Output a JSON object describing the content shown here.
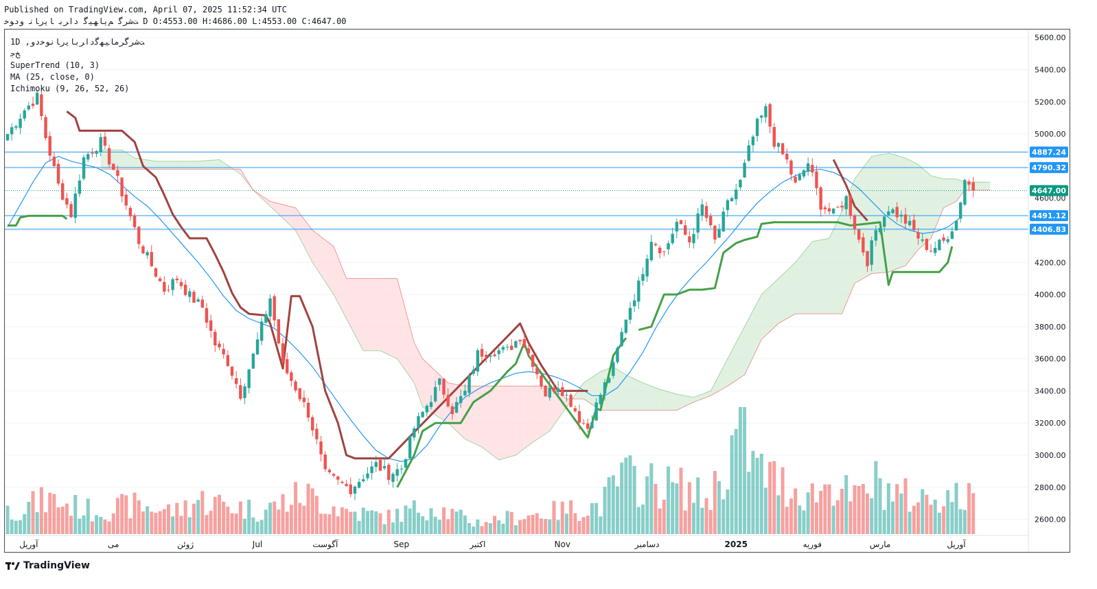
{
  "header": {
    "published_line": "Published on TradingView.com, April 07, 2025 11:52:34 UTC",
    "symbol_line": "ﺖﺷﺮﮔ ﻢﯾﺎﻬﯿﮔ ﺩﺍﺮﺑ ﺎﯾﺭﺎﻧ ﻭﺩﻮﺧ D O:4553.00 H:4686.00 L:4553.00 C:4647.00"
  },
  "legend": {
    "symbol_name": "1D  ,ﺖﺷﺮﮔﺮﻣﺎﯿﻬﮔﺩﺍﺮﺑﺎﯾﺭﺎﻧﻮﺧﺩﻭ",
    "exchange": "ﺦﺟ",
    "indicators": [
      "SuperTrend (10, 3)",
      "MA (25, close, 0)",
      "Ichimoku (9, 26, 52, 26)"
    ]
  },
  "footer": {
    "brand": "TradingView"
  },
  "colors": {
    "up": "#26a69a",
    "down": "#ef5350",
    "st_up": "#43a047",
    "st_down": "#a0423e",
    "ma": "#2196f3",
    "hline": "#2196f3",
    "cloud_bull": "#c8e6c9",
    "cloud_bear": "#ffcdd2",
    "last_price": "#089981"
  },
  "chart_data": {
    "type": "candlestick",
    "timeframe": "1D",
    "ylim": [
      2500,
      5650
    ],
    "y_ticks": [
      2600,
      2800,
      3000,
      3200,
      3400,
      3600,
      3800,
      4000,
      4200,
      4400,
      4600,
      4800,
      5000,
      5200,
      5400,
      5600
    ],
    "y_tick_labels": [
      "2600.00",
      "2800.00",
      "3000.00",
      "3200.00",
      "3400.00",
      "3600.00",
      "3800.00",
      "4000.00",
      "4200.00",
      "4400.00",
      "4600.00",
      "4800.00",
      "5000.00",
      "5200.00",
      "5400.00",
      "5600.00"
    ],
    "x_labels": [
      {
        "label": "آوریل",
        "bar": 5
      },
      {
        "label": "می",
        "bar": 25
      },
      {
        "label": "ژوئن",
        "bar": 42
      },
      {
        "label": "Jul",
        "bar": 59
      },
      {
        "label": "آگوست",
        "bar": 75
      },
      {
        "label": "Sep",
        "bar": 93
      },
      {
        "label": "اکتبر",
        "bar": 111
      },
      {
        "label": "Nov",
        "bar": 131
      },
      {
        "label": "دسامبر",
        "bar": 151
      },
      {
        "label": "2025",
        "bar": 172,
        "bold": true
      },
      {
        "label": "فوریه",
        "bar": 190
      },
      {
        "label": "مارس",
        "bar": 206
      },
      {
        "label": "آوریل",
        "bar": 224
      }
    ],
    "horizontal_lines": [
      4887.24,
      4790.32,
      4491.12,
      4406.83
    ],
    "price_labels": [
      {
        "value": 4887.24,
        "text": "4887.24",
        "kind": "hline"
      },
      {
        "value": 4790.32,
        "text": "4790.32",
        "kind": "hline"
      },
      {
        "value": 4647.0,
        "text": "4647.00",
        "kind": "last"
      },
      {
        "value": 4491.12,
        "text": "4491.12",
        "kind": "hline"
      },
      {
        "value": 4406.83,
        "text": "4406.83",
        "kind": "hline"
      }
    ],
    "last_price": 4647.0,
    "close_anchors": [
      [
        0,
        5000
      ],
      [
        4,
        5150
      ],
      [
        7,
        5230
      ],
      [
        9,
        4980
      ],
      [
        12,
        4680
      ],
      [
        15,
        4500
      ],
      [
        18,
        4850
      ],
      [
        22,
        4950
      ],
      [
        25,
        4780
      ],
      [
        28,
        4560
      ],
      [
        31,
        4330
      ],
      [
        34,
        4180
      ],
      [
        37,
        4030
      ],
      [
        40,
        4100
      ],
      [
        43,
        3990
      ],
      [
        46,
        3920
      ],
      [
        49,
        3690
      ],
      [
        52,
        3580
      ],
      [
        55,
        3380
      ],
      [
        58,
        3620
      ],
      [
        62,
        3980
      ],
      [
        65,
        3560
      ],
      [
        68,
        3420
      ],
      [
        71,
        3260
      ],
      [
        73,
        3080
      ],
      [
        75,
        2880
      ],
      [
        78,
        2830
      ],
      [
        81,
        2790
      ],
      [
        84,
        2870
      ],
      [
        87,
        2940
      ],
      [
        90,
        2880
      ],
      [
        93,
        2920
      ],
      [
        96,
        3170
      ],
      [
        99,
        3310
      ],
      [
        102,
        3450
      ],
      [
        105,
        3280
      ],
      [
        108,
        3390
      ],
      [
        111,
        3630
      ],
      [
        114,
        3650
      ],
      [
        118,
        3650
      ],
      [
        121,
        3740
      ],
      [
        124,
        3580
      ],
      [
        127,
        3380
      ],
      [
        130,
        3440
      ],
      [
        133,
        3330
      ],
      [
        135,
        3230
      ],
      [
        137,
        3170
      ],
      [
        140,
        3380
      ],
      [
        143,
        3550
      ],
      [
        146,
        3860
      ],
      [
        149,
        4060
      ],
      [
        152,
        4350
      ],
      [
        155,
        4260
      ],
      [
        158,
        4450
      ],
      [
        161,
        4330
      ],
      [
        164,
        4550
      ],
      [
        167,
        4330
      ],
      [
        170,
        4560
      ],
      [
        173,
        4700
      ],
      [
        175,
        4900
      ],
      [
        177,
        5060
      ],
      [
        179,
        5150
      ],
      [
        181,
        4950
      ],
      [
        184,
        4830
      ],
      [
        186,
        4680
      ],
      [
        189,
        4820
      ],
      [
        192,
        4560
      ],
      [
        195,
        4500
      ],
      [
        198,
        4600
      ],
      [
        201,
        4340
      ],
      [
        203,
        4210
      ],
      [
        205,
        4400
      ],
      [
        208,
        4540
      ],
      [
        211,
        4480
      ],
      [
        213,
        4430
      ],
      [
        216,
        4320
      ],
      [
        218,
        4280
      ],
      [
        221,
        4330
      ],
      [
        224,
        4460
      ],
      [
        226,
        4720
      ],
      [
        228,
        4647
      ]
    ],
    "volume_anchors": [
      [
        0,
        0.2
      ],
      [
        10,
        0.3
      ],
      [
        20,
        0.2
      ],
      [
        30,
        0.25
      ],
      [
        40,
        0.2
      ],
      [
        45,
        0.3
      ],
      [
        60,
        0.2
      ],
      [
        70,
        0.35
      ],
      [
        80,
        0.2
      ],
      [
        90,
        0.15
      ],
      [
        100,
        0.25
      ],
      [
        110,
        0.1
      ],
      [
        120,
        0.15
      ],
      [
        130,
        0.2
      ],
      [
        140,
        0.25
      ],
      [
        145,
        0.5
      ],
      [
        150,
        0.45
      ],
      [
        160,
        0.4
      ],
      [
        165,
        0.3
      ],
      [
        170,
        0.6
      ],
      [
        173,
        1.0
      ],
      [
        176,
        0.6
      ],
      [
        180,
        0.5
      ],
      [
        185,
        0.4
      ],
      [
        190,
        0.35
      ],
      [
        195,
        0.45
      ],
      [
        200,
        0.3
      ],
      [
        205,
        0.45
      ],
      [
        210,
        0.35
      ],
      [
        215,
        0.3
      ],
      [
        220,
        0.35
      ],
      [
        228,
        0.3
      ]
    ],
    "supertrend_up": [
      [
        0,
        4430
      ],
      [
        2,
        4430
      ],
      [
        3,
        4480
      ],
      [
        5,
        4490
      ],
      [
        13,
        4490
      ],
      [
        14,
        4470
      ],
      [
        92,
        2800
      ],
      [
        94,
        2900
      ],
      [
        96,
        3000
      ],
      [
        98,
        3150
      ],
      [
        101,
        3200
      ],
      [
        107,
        3200
      ],
      [
        110,
        3330
      ],
      [
        114,
        3400
      ],
      [
        118,
        3520
      ],
      [
        120,
        3570
      ],
      [
        122,
        3700
      ],
      [
        123,
        3620
      ],
      [
        137,
        3110
      ],
      [
        139,
        3290
      ],
      [
        140,
        3280
      ],
      [
        143,
        3620
      ],
      [
        146,
        3730
      ],
      [
        149,
        3780
      ],
      [
        152,
        3800
      ],
      [
        155,
        4000
      ],
      [
        158,
        4000
      ],
      [
        161,
        4030
      ],
      [
        164,
        4030
      ],
      [
        167,
        4040
      ],
      [
        169,
        4260
      ],
      [
        172,
        4320
      ],
      [
        174,
        4340
      ],
      [
        177,
        4360
      ],
      [
        178,
        4440
      ],
      [
        181,
        4450
      ],
      [
        196,
        4450
      ],
      [
        199,
        4430
      ],
      [
        206,
        4450
      ],
      [
        208,
        4060
      ],
      [
        209,
        4140
      ],
      [
        220,
        4140
      ],
      [
        222,
        4200
      ],
      [
        223,
        4300
      ],
      [
        225,
        4300
      ]
    ],
    "supertrend_down": [
      [
        14,
        5140
      ],
      [
        16,
        5100
      ],
      [
        17,
        5020
      ],
      [
        27,
        5020
      ],
      [
        30,
        4950
      ],
      [
        32,
        4800
      ],
      [
        35,
        4730
      ],
      [
        37,
        4620
      ],
      [
        39,
        4500
      ],
      [
        41,
        4420
      ],
      [
        43,
        4350
      ],
      [
        47,
        4350
      ],
      [
        49,
        4250
      ],
      [
        51,
        4140
      ],
      [
        53,
        4010
      ],
      [
        55,
        3920
      ],
      [
        57,
        3880
      ],
      [
        61,
        3870
      ],
      [
        62,
        3820
      ],
      [
        65,
        3540
      ],
      [
        67,
        3990
      ],
      [
        69,
        3990
      ],
      [
        72,
        3800
      ],
      [
        75,
        3400
      ],
      [
        78,
        3200
      ],
      [
        80,
        3000
      ],
      [
        82,
        2980
      ],
      [
        90,
        2980
      ],
      [
        121,
        3820
      ],
      [
        123,
        3700
      ],
      [
        126,
        3560
      ],
      [
        130,
        3400
      ],
      [
        137,
        3400
      ],
      [
        195,
        4840
      ],
      [
        198,
        4680
      ],
      [
        200,
        4550
      ],
      [
        203,
        4460
      ],
      [
        206,
        4450
      ]
    ],
    "ma25": [
      [
        0,
        4420
      ],
      [
        3,
        4560
      ],
      [
        6,
        4700
      ],
      [
        9,
        4820
      ],
      [
        12,
        4860
      ],
      [
        15,
        4830
      ],
      [
        18,
        4810
      ],
      [
        21,
        4790
      ],
      [
        24,
        4750
      ],
      [
        27,
        4680
      ],
      [
        30,
        4610
      ],
      [
        33,
        4550
      ],
      [
        36,
        4470
      ],
      [
        39,
        4380
      ],
      [
        42,
        4290
      ],
      [
        45,
        4200
      ],
      [
        48,
        4100
      ],
      [
        51,
        3990
      ],
      [
        54,
        3900
      ],
      [
        57,
        3850
      ],
      [
        60,
        3820
      ],
      [
        63,
        3790
      ],
      [
        66,
        3720
      ],
      [
        69,
        3640
      ],
      [
        72,
        3550
      ],
      [
        75,
        3440
      ],
      [
        78,
        3330
      ],
      [
        81,
        3220
      ],
      [
        84,
        3120
      ],
      [
        87,
        3030
      ],
      [
        90,
        2980
      ],
      [
        93,
        2960
      ],
      [
        96,
        2980
      ],
      [
        99,
        3060
      ],
      [
        102,
        3180
      ],
      [
        105,
        3280
      ],
      [
        108,
        3360
      ],
      [
        111,
        3410
      ],
      [
        114,
        3450
      ],
      [
        117,
        3480
      ],
      [
        120,
        3510
      ],
      [
        123,
        3520
      ],
      [
        126,
        3510
      ],
      [
        129,
        3490
      ],
      [
        132,
        3460
      ],
      [
        135,
        3420
      ],
      [
        138,
        3370
      ],
      [
        141,
        3370
      ],
      [
        144,
        3420
      ],
      [
        147,
        3520
      ],
      [
        150,
        3640
      ],
      [
        153,
        3790
      ],
      [
        156,
        3920
      ],
      [
        159,
        4030
      ],
      [
        162,
        4120
      ],
      [
        165,
        4200
      ],
      [
        168,
        4290
      ],
      [
        171,
        4380
      ],
      [
        174,
        4480
      ],
      [
        177,
        4570
      ],
      [
        180,
        4640
      ],
      [
        183,
        4700
      ],
      [
        186,
        4740
      ],
      [
        189,
        4770
      ],
      [
        192,
        4780
      ],
      [
        195,
        4760
      ],
      [
        198,
        4720
      ],
      [
        201,
        4660
      ],
      [
        204,
        4580
      ],
      [
        207,
        4500
      ],
      [
        210,
        4440
      ],
      [
        213,
        4400
      ],
      [
        216,
        4380
      ],
      [
        219,
        4390
      ],
      [
        222,
        4420
      ],
      [
        225,
        4480
      ]
    ],
    "cloud_span_a": [
      [
        22,
        4900
      ],
      [
        27,
        4900
      ],
      [
        30,
        4850
      ],
      [
        35,
        4830
      ],
      [
        40,
        4830
      ],
      [
        45,
        4830
      ],
      [
        50,
        4840
      ],
      [
        55,
        4750
      ],
      [
        58,
        4650
      ],
      [
        62,
        4550
      ],
      [
        68,
        4400
      ],
      [
        72,
        4200
      ],
      [
        77,
        4000
      ],
      [
        80,
        3850
      ],
      [
        84,
        3650
      ],
      [
        88,
        3650
      ],
      [
        92,
        3600
      ],
      [
        96,
        3450
      ],
      [
        98,
        3300
      ],
      [
        104,
        3200
      ],
      [
        108,
        3100
      ],
      [
        112,
        3050
      ],
      [
        116,
        2970
      ],
      [
        120,
        3000
      ],
      [
        124,
        3080
      ],
      [
        128,
        3150
      ],
      [
        132,
        3300
      ],
      [
        136,
        3450
      ],
      [
        140,
        3520
      ],
      [
        143,
        3550
      ],
      [
        146,
        3500
      ],
      [
        150,
        3450
      ],
      [
        154,
        3410
      ],
      [
        158,
        3380
      ],
      [
        162,
        3360
      ],
      [
        166,
        3400
      ],
      [
        170,
        3600
      ],
      [
        174,
        3800
      ],
      [
        178,
        4000
      ],
      [
        182,
        4100
      ],
      [
        186,
        4200
      ],
      [
        190,
        4330
      ],
      [
        194,
        4350
      ],
      [
        197,
        4520
      ],
      [
        200,
        4720
      ],
      [
        204,
        4860
      ],
      [
        208,
        4880
      ],
      [
        212,
        4850
      ],
      [
        215,
        4810
      ],
      [
        218,
        4740
      ],
      [
        221,
        4720
      ],
      [
        224,
        4720
      ],
      [
        226,
        4700
      ],
      [
        232,
        4700
      ]
    ],
    "cloud_span_b": [
      [
        22,
        4780
      ],
      [
        27,
        4780
      ],
      [
        30,
        4780
      ],
      [
        35,
        4780
      ],
      [
        40,
        4780
      ],
      [
        45,
        4780
      ],
      [
        50,
        4780
      ],
      [
        55,
        4780
      ],
      [
        58,
        4650
      ],
      [
        62,
        4580
      ],
      [
        68,
        4540
      ],
      [
        72,
        4400
      ],
      [
        77,
        4300
      ],
      [
        80,
        4100
      ],
      [
        84,
        4100
      ],
      [
        88,
        4100
      ],
      [
        92,
        4100
      ],
      [
        96,
        3700
      ],
      [
        98,
        3600
      ],
      [
        104,
        3450
      ],
      [
        108,
        3430
      ],
      [
        112,
        3430
      ],
      [
        116,
        3430
      ],
      [
        120,
        3430
      ],
      [
        124,
        3430
      ],
      [
        128,
        3430
      ],
      [
        132,
        3350
      ],
      [
        136,
        3350
      ],
      [
        140,
        3280
      ],
      [
        143,
        3280
      ],
      [
        146,
        3280
      ],
      [
        150,
        3280
      ],
      [
        154,
        3280
      ],
      [
        158,
        3280
      ],
      [
        162,
        3330
      ],
      [
        166,
        3370
      ],
      [
        170,
        3430
      ],
      [
        174,
        3500
      ],
      [
        178,
        3720
      ],
      [
        182,
        3820
      ],
      [
        186,
        3880
      ],
      [
        190,
        3880
      ],
      [
        194,
        3880
      ],
      [
        197,
        3880
      ],
      [
        200,
        4070
      ],
      [
        204,
        4130
      ],
      [
        208,
        4140
      ],
      [
        212,
        4180
      ],
      [
        215,
        4280
      ],
      [
        218,
        4350
      ],
      [
        221,
        4540
      ],
      [
        224,
        4580
      ],
      [
        226,
        4650
      ],
      [
        232,
        4650
      ]
    ]
  }
}
